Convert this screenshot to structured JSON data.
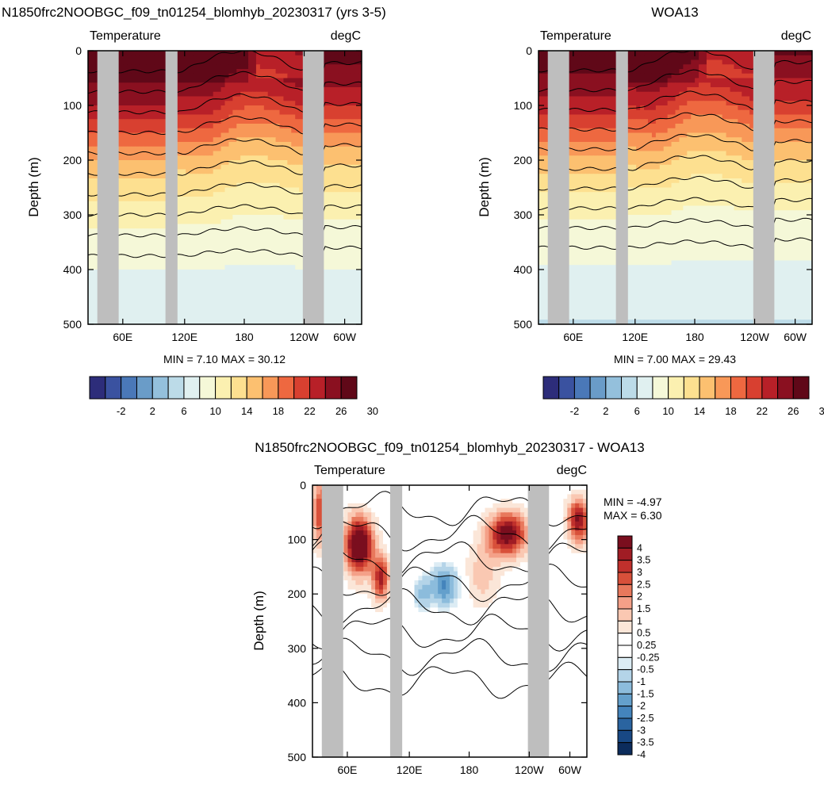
{
  "panels": [
    {
      "title": "N1850frc2NOOBGC_f09_tn01254_blomhyb_20230317 (yrs 3-5)",
      "left_label": "Temperature",
      "right_label": "degC",
      "ylabel": "Depth (m)",
      "stats": "MIN =   7.10  MAX =  30.12"
    },
    {
      "title": "WOA13",
      "left_label": "Temperature",
      "right_label": "degC",
      "ylabel": "Depth (m)",
      "stats": "MIN =   7.00  MAX =  29.43"
    },
    {
      "title": "N1850frc2NOOBGC_f09_tn01254_blomhyb_20230317 - WOA13",
      "left_label": "Temperature",
      "right_label": "degC",
      "ylabel": "Depth (m)",
      "stats_min": "MIN =  -4.97",
      "stats_max": "MAX =   6.30"
    }
  ],
  "chart_data": [
    {
      "type": "heatmap",
      "title": "N1850frc2NOOBGC_f09_tn01254_blomhyb_20230317 (yrs 3-5)",
      "ylabel": "Depth (m)",
      "y_ticks": [
        "0",
        "100",
        "200",
        "300",
        "400",
        "500"
      ],
      "x_ticks": [
        "60E",
        "120E",
        "180",
        "120W",
        "60W"
      ],
      "ylim": [
        500,
        0
      ],
      "value_range": [
        7.1,
        30.12
      ],
      "depth_levels": [
        0,
        50,
        100,
        150,
        200,
        250,
        300,
        350,
        400,
        450,
        500
      ],
      "profile": [
        29.5,
        27.5,
        25.0,
        21.0,
        17.0,
        14.5,
        12.5,
        11.0,
        10.0,
        9.0,
        8.0
      ],
      "colorbar_labels": [
        "-2",
        "2",
        "6",
        "10",
        "14",
        "18",
        "22",
        "26",
        "30"
      ]
    },
    {
      "type": "heatmap",
      "title": "WOA13",
      "ylabel": "Depth (m)",
      "y_ticks": [
        "0",
        "100",
        "200",
        "300",
        "400",
        "500"
      ],
      "x_ticks": [
        "60E",
        "120E",
        "180",
        "120W",
        "60W"
      ],
      "ylim": [
        500,
        0
      ],
      "value_range": [
        7.0,
        29.43
      ],
      "depth_levels": [
        0,
        50,
        100,
        150,
        200,
        250,
        300,
        350,
        400,
        450,
        500
      ],
      "profile": [
        29.0,
        27.0,
        24.0,
        20.0,
        16.5,
        14.0,
        12.0,
        10.8,
        9.8,
        8.8,
        7.8
      ],
      "colorbar_labels": [
        "-2",
        "2",
        "6",
        "10",
        "14",
        "18",
        "22",
        "26",
        "30"
      ]
    },
    {
      "type": "heatmap",
      "title": "N1850frc2NOOBGC_f09_tn01254_blomhyb_20230317 - WOA13",
      "ylabel": "Depth (m)",
      "y_ticks": [
        "0",
        "100",
        "200",
        "300",
        "400",
        "500"
      ],
      "x_ticks": [
        "60E",
        "120E",
        "180",
        "120W",
        "60W"
      ],
      "ylim": [
        500,
        0
      ],
      "value_range": [
        -4.97,
        6.3
      ],
      "colorbar_labels": [
        "4",
        "3.5",
        "3",
        "2.5",
        "2",
        "1.5",
        "1",
        "0.5",
        "0.25",
        "-0.25",
        "-0.5",
        "-1",
        "-1.5",
        "-2",
        "-2.5",
        "-3",
        "-3.5",
        "-4"
      ]
    }
  ],
  "colors": {
    "temp_palette": [
      "#2d2d7a",
      "#3a52a0",
      "#4a78b8",
      "#6a9cc8",
      "#94c0dc",
      "#bcdbe8",
      "#e0f0f0",
      "#f5f8d8",
      "#fbf0b0",
      "#fde090",
      "#fcc070",
      "#f89858",
      "#ee6840",
      "#d84030",
      "#b82028",
      "#8a1020",
      "#600818"
    ],
    "diff_palette": [
      "#7a0e1e",
      "#a01c24",
      "#c0302c",
      "#d8503a",
      "#e8785c",
      "#f4a088",
      "#fac8b2",
      "#fbe6d8",
      "#ffffff",
      "#ffffff",
      "#dcecf4",
      "#b4d4e8",
      "#8cbcdc",
      "#64a0cc",
      "#4484bc",
      "#2a64a0",
      "#184884",
      "#0c2c5c"
    ],
    "land_mask": "#bebebe"
  }
}
